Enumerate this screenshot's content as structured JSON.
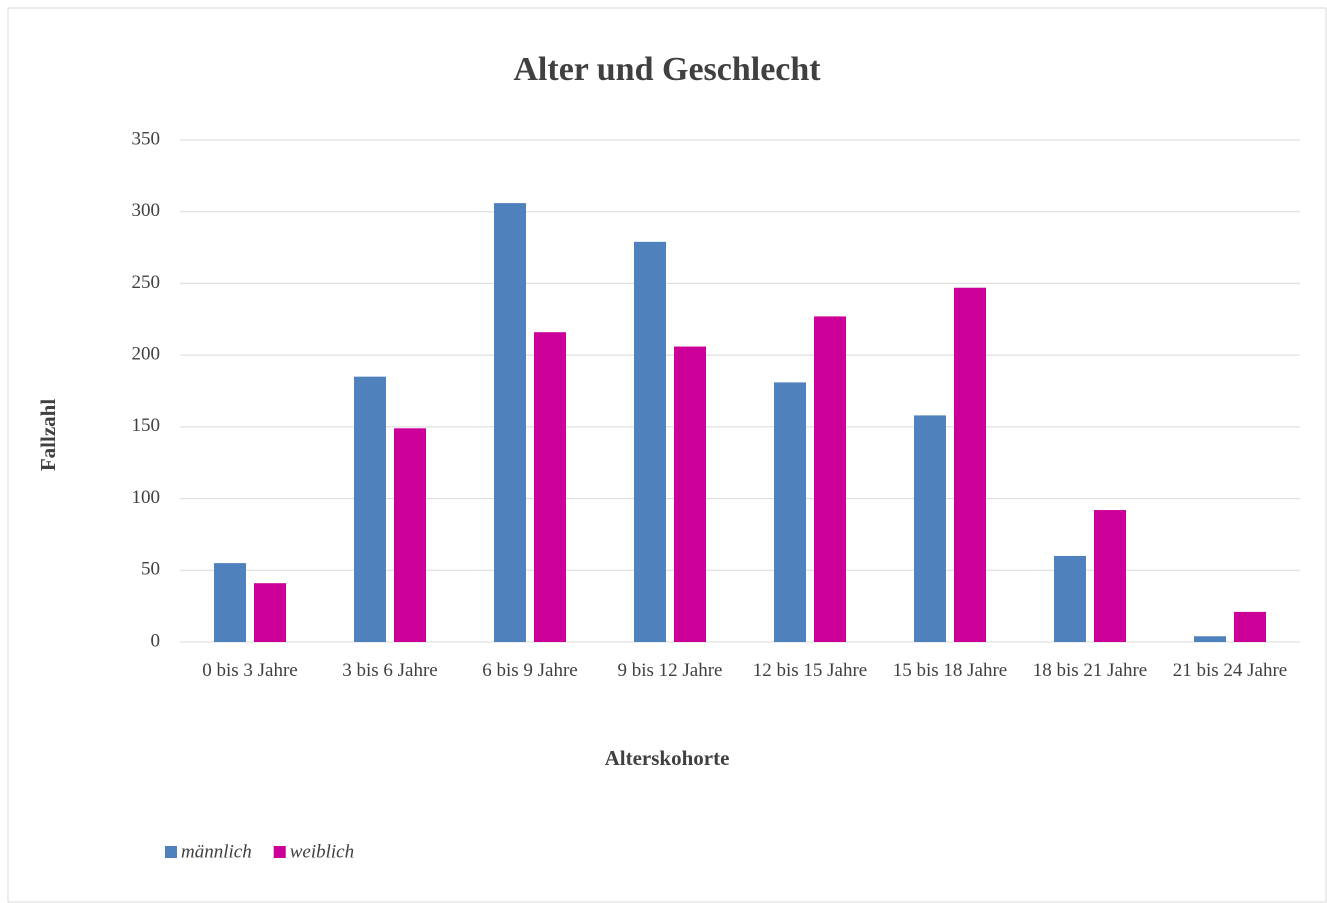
{
  "chart_data": {
    "type": "bar",
    "title": "Alter und Geschlecht",
    "x_label": "Alterskohorte",
    "y_label": "Fallzahl",
    "categories": [
      "0 bis 3 Jahre",
      "3 bis 6 Jahre",
      "6 bis 9 Jahre",
      "9 bis 12 Jahre",
      "12 bis 15 Jahre",
      "15 bis 18 Jahre",
      "18 bis 21 Jahre",
      "21 bis 24 Jahre"
    ],
    "series": [
      {
        "name": "männlich",
        "color": "#4f81bd",
        "values": [
          55,
          185,
          306,
          279,
          181,
          158,
          60,
          4
        ]
      },
      {
        "name": "weiblich",
        "color": "#cc0099",
        "values": [
          41,
          149,
          216,
          206,
          227,
          247,
          92,
          21
        ]
      }
    ],
    "ylim": [
      0,
      350
    ],
    "yticks": [
      0,
      50,
      100,
      150,
      200,
      250,
      300,
      350
    ],
    "grid": true,
    "legend": "bottom-left"
  }
}
